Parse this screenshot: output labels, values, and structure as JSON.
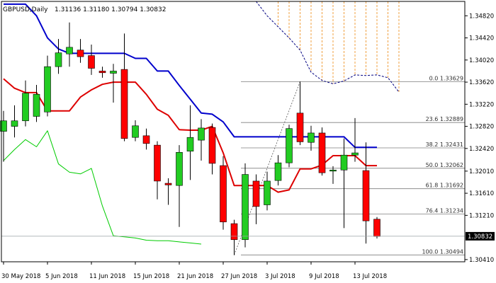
{
  "chart_data": {
    "type": "candlestick",
    "symbol_label": "GBPUSD,Daily",
    "ohlc_label": "1.31136 1.31180 1.30794 1.30832",
    "ylim": [
      1.3037,
      1.3508
    ],
    "y_ticks": [
      {
        "value": 1.3482,
        "label": "1.34820"
      },
      {
        "value": 1.3442,
        "label": "1.34420"
      },
      {
        "value": 1.3402,
        "label": "1.34020"
      },
      {
        "value": 1.3362,
        "label": "1.33620"
      },
      {
        "value": 1.3322,
        "label": "1.33220"
      },
      {
        "value": 1.3282,
        "label": "1.32820"
      },
      {
        "value": 1.3242,
        "label": "1.32420"
      },
      {
        "value": 1.3201,
        "label": "1.32010"
      },
      {
        "value": 1.3161,
        "label": "1.31610"
      },
      {
        "value": 1.3121,
        "label": "1.31210"
      },
      {
        "value": 1.3041,
        "label": "1.30410"
      }
    ],
    "current_price": {
      "value": 1.30832,
      "label": "1.30832"
    },
    "x_labels": [
      {
        "bar": 0,
        "label": "30 May 2018"
      },
      {
        "bar": 4,
        "label": "5 Jun 2018"
      },
      {
        "bar": 8,
        "label": "11 Jun 2018"
      },
      {
        "bar": 12,
        "label": "15 Jun 2018"
      },
      {
        "bar": 16,
        "label": "21 Jun 2018"
      },
      {
        "bar": 20,
        "label": "27 Jun 2018"
      },
      {
        "bar": 24,
        "label": "3 Jul 2018"
      },
      {
        "bar": 28,
        "label": "9 Jul 2018"
      },
      {
        "bar": 32,
        "label": "13 Jul 2018"
      }
    ],
    "candles": [
      {
        "o": 1.3273,
        "h": 1.331,
        "l": 1.3218,
        "c": 1.3292
      },
      {
        "o": 1.3282,
        "h": 1.332,
        "l": 1.3262,
        "c": 1.3292
      },
      {
        "o": 1.3292,
        "h": 1.3365,
        "l": 1.3282,
        "c": 1.3342
      },
      {
        "o": 1.33,
        "h": 1.3357,
        "l": 1.329,
        "c": 1.334
      },
      {
        "o": 1.3308,
        "h": 1.341,
        "l": 1.33,
        "c": 1.339
      },
      {
        "o": 1.339,
        "h": 1.344,
        "l": 1.3377,
        "c": 1.3415
      },
      {
        "o": 1.3413,
        "h": 1.347,
        "l": 1.339,
        "c": 1.3425
      },
      {
        "o": 1.342,
        "h": 1.344,
        "l": 1.3397,
        "c": 1.3408
      },
      {
        "o": 1.341,
        "h": 1.343,
        "l": 1.3375,
        "c": 1.3387
      },
      {
        "o": 1.3382,
        "h": 1.339,
        "l": 1.337,
        "c": 1.3379
      },
      {
        "o": 1.3378,
        "h": 1.3395,
        "l": 1.3325,
        "c": 1.3382
      },
      {
        "o": 1.3385,
        "h": 1.345,
        "l": 1.3255,
        "c": 1.326
      },
      {
        "o": 1.3262,
        "h": 1.3293,
        "l": 1.3255,
        "c": 1.3283
      },
      {
        "o": 1.3265,
        "h": 1.3278,
        "l": 1.324,
        "c": 1.3251
      },
      {
        "o": 1.3248,
        "h": 1.3255,
        "l": 1.315,
        "c": 1.3183
      },
      {
        "o": 1.3179,
        "h": 1.3188,
        "l": 1.314,
        "c": 1.3176
      },
      {
        "o": 1.3175,
        "h": 1.3248,
        "l": 1.31,
        "c": 1.3235
      },
      {
        "o": 1.3237,
        "h": 1.332,
        "l": 1.3185,
        "c": 1.3262
      },
      {
        "o": 1.3257,
        "h": 1.3295,
        "l": 1.322,
        "c": 1.3279
      },
      {
        "o": 1.328,
        "h": 1.3287,
        "l": 1.3195,
        "c": 1.3215
      },
      {
        "o": 1.3211,
        "h": 1.3228,
        "l": 1.3095,
        "c": 1.3109
      },
      {
        "o": 1.3106,
        "h": 1.3113,
        "l": 1.3049,
        "c": 1.3077
      },
      {
        "o": 1.3077,
        "h": 1.3215,
        "l": 1.3063,
        "c": 1.3195
      },
      {
        "o": 1.3183,
        "h": 1.3195,
        "l": 1.3105,
        "c": 1.3137
      },
      {
        "o": 1.314,
        "h": 1.32,
        "l": 1.313,
        "c": 1.3183
      },
      {
        "o": 1.3184,
        "h": 1.323,
        "l": 1.3175,
        "c": 1.3216
      },
      {
        "o": 1.3216,
        "h": 1.3285,
        "l": 1.3208,
        "c": 1.3278
      },
      {
        "o": 1.3306,
        "h": 1.3363,
        "l": 1.3248,
        "c": 1.3254
      },
      {
        "o": 1.3253,
        "h": 1.3283,
        "l": 1.3238,
        "c": 1.327
      },
      {
        "o": 1.327,
        "h": 1.328,
        "l": 1.3193,
        "c": 1.3198
      },
      {
        "o": 1.3201,
        "h": 1.321,
        "l": 1.3178,
        "c": 1.3203
      },
      {
        "o": 1.3203,
        "h": 1.326,
        "l": 1.3098,
        "c": 1.323
      },
      {
        "o": 1.323,
        "h": 1.3297,
        "l": 1.3218,
        "c": 1.3234
      },
      {
        "o": 1.3202,
        "h": 1.3253,
        "l": 1.307,
        "c": 1.3111
      },
      {
        "o": 1.3114,
        "h": 1.3118,
        "l": 1.3079,
        "c": 1.3083
      }
    ],
    "series": [
      {
        "color": "#0000cc",
        "values": [
          1.3503,
          1.3503,
          1.3503,
          1.3482,
          1.3442,
          1.3422,
          1.3414,
          1.3414,
          1.3414,
          1.3414,
          1.3414,
          1.3414,
          1.3405,
          1.3405,
          1.3382,
          1.3382,
          1.3356,
          1.3331,
          1.3306,
          1.3304,
          1.329,
          1.3263,
          1.3263,
          1.3263,
          1.3263,
          1.3263,
          1.3263,
          1.3263,
          1.3263,
          1.3263,
          1.3263,
          1.3263,
          1.3244,
          1.3244,
          1.3244
        ]
      },
      {
        "color": "#dd0000",
        "values": [
          1.3368,
          1.3351,
          1.3343,
          1.3343,
          1.331,
          1.331,
          1.331,
          1.3335,
          1.3348,
          1.3358,
          1.3362,
          1.3362,
          1.3362,
          1.334,
          1.3313,
          1.3302,
          1.3276,
          1.3275,
          1.3275,
          1.3282,
          1.3234,
          1.3175,
          1.3175,
          1.3175,
          1.3175,
          1.3163,
          1.3167,
          1.3205,
          1.3205,
          1.3212,
          1.3229,
          1.3229,
          1.3229,
          1.3211,
          1.3211
        ]
      },
      {
        "color": "#00cc00",
        "values": [
          1.322,
          1.324,
          1.3258,
          1.3245,
          1.3274,
          1.3214,
          1.3199,
          1.3196,
          1.3206,
          1.3138,
          1.3084,
          1.3082,
          1.308,
          1.3076,
          1.3075,
          1.3075,
          1.3073,
          1.3071,
          1.3069
        ]
      }
    ],
    "cloud": {
      "start_bar": 23,
      "upper_values": [
        1.3508,
        1.3508,
        1.3508,
        1.3508,
        1.3508,
        1.3508,
        1.3508,
        1.3508,
        1.3508,
        1.3508,
        1.3508,
        1.3508,
        1.3508,
        1.3508
      ],
      "lower_values": [
        1.3508,
        1.3482,
        1.3462,
        1.3442,
        1.342,
        1.338,
        1.3365,
        1.3359,
        1.3364,
        1.3375,
        1.3374,
        1.3375,
        1.337,
        1.3344
      ]
    },
    "fibonacci": [
      {
        "value": 1.33629,
        "label": "0.0  1.33629"
      },
      {
        "value": 1.32889,
        "label": "23.6  1.32889"
      },
      {
        "value": 1.32431,
        "label": "38.2  1.32431"
      },
      {
        "value": 1.32062,
        "label": "50.0  1.32062"
      },
      {
        "value": 1.31692,
        "label": "61.8  1.31692"
      },
      {
        "value": 1.31234,
        "label": "76.4  1.31234"
      },
      {
        "value": 1.30494,
        "label": "100.0  1.30494"
      }
    ],
    "trend_line": {
      "from_bar": 21,
      "from_value": 1.30494,
      "to_bar": 27,
      "to_value": 1.33629
    }
  }
}
